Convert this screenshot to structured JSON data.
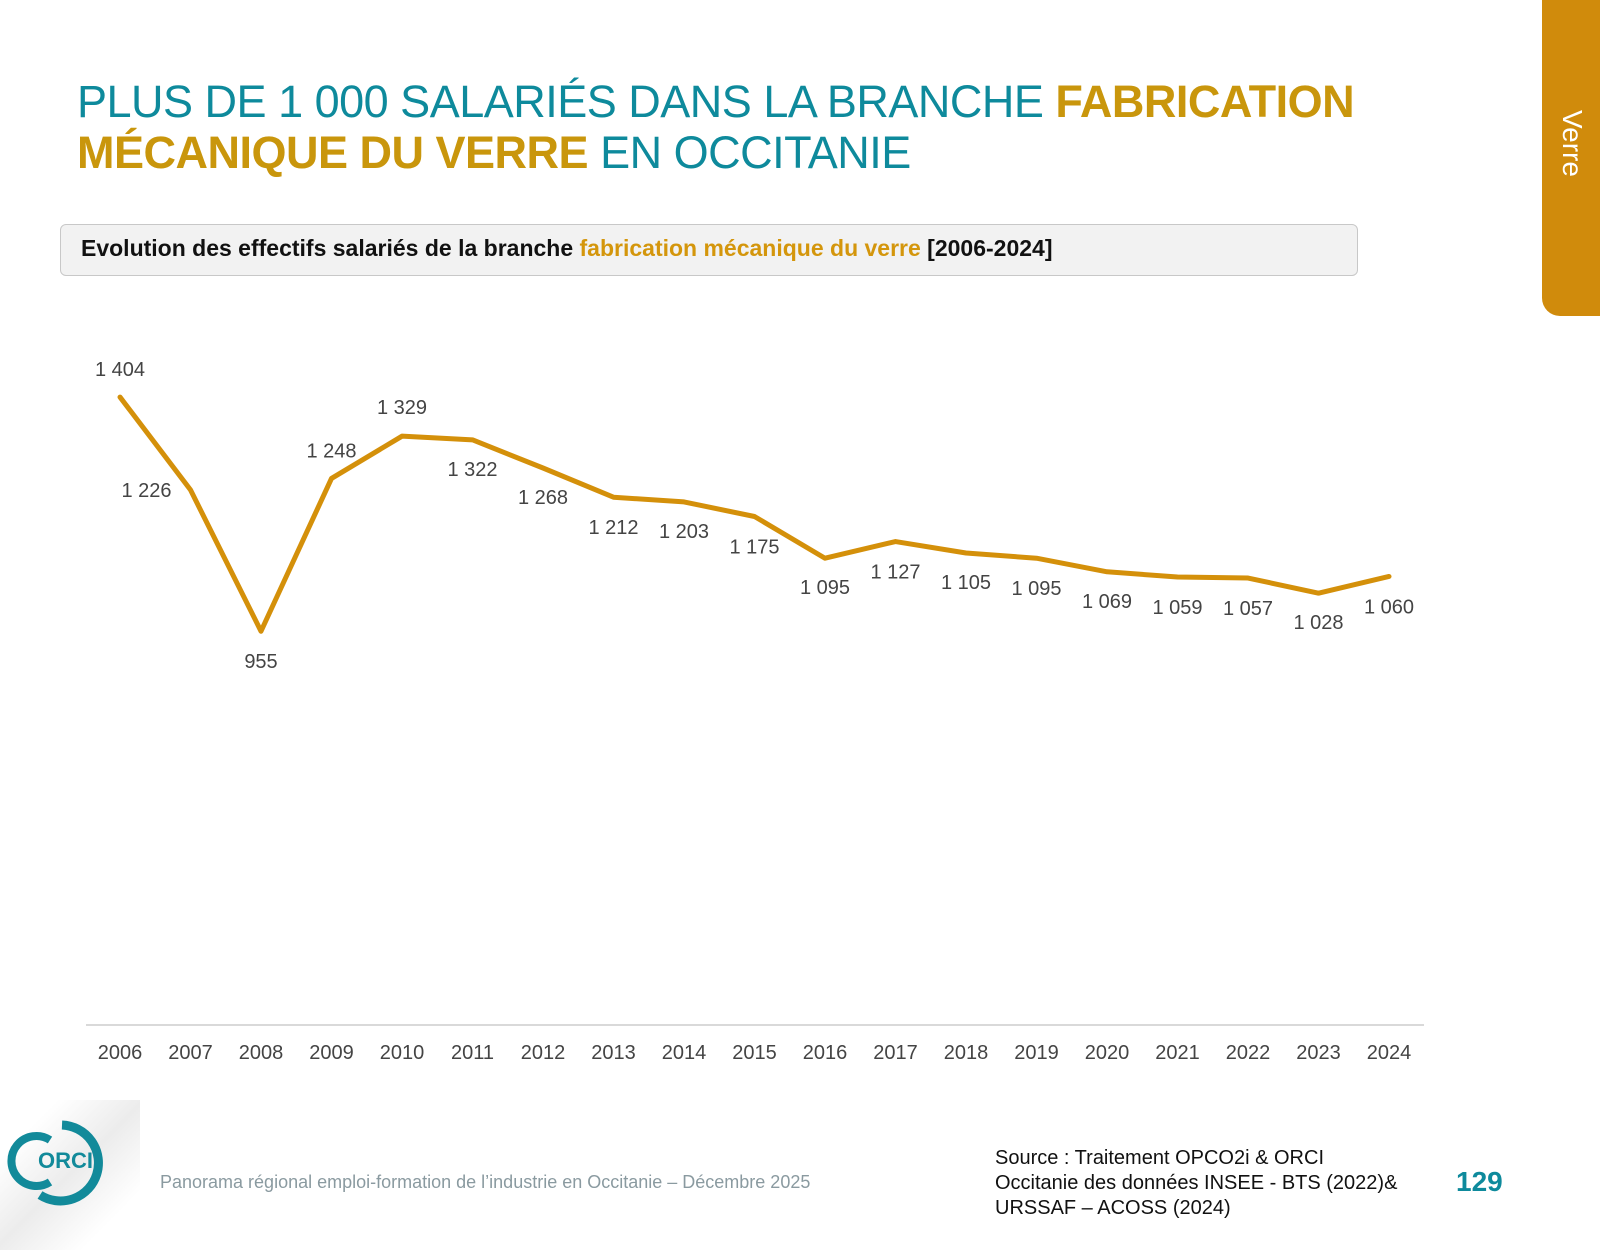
{
  "side_tab": {
    "label": "Verre"
  },
  "title": {
    "part1": "PLUS DE 1 000 SALARIÉS DANS LA BRANCHE ",
    "highlight": "FABRICATION MÉCANIQUE DU VERRE",
    "part2": " EN OCCITANIE"
  },
  "subtitle": {
    "part1": "Evolution des effectifs salariés de la branche ",
    "highlight": "fabrication mécanique du verre",
    "part2": " [2006-2024]"
  },
  "colors": {
    "teal": "#0e8a9c",
    "gold": "#d08b0c",
    "line": "#d4900a"
  },
  "chart_data": {
    "type": "line",
    "title": "",
    "xlabel": "",
    "ylabel": "",
    "categories": [
      "2006",
      "2007",
      "2008",
      "2009",
      "2010",
      "2011",
      "2012",
      "2013",
      "2014",
      "2015",
      "2016",
      "2017",
      "2018",
      "2019",
      "2020",
      "2021",
      "2022",
      "2023",
      "2024"
    ],
    "values": [
      1404,
      1226,
      955,
      1248,
      1329,
      1322,
      1268,
      1212,
      1203,
      1175,
      1095,
      1127,
      1105,
      1095,
      1069,
      1059,
      1057,
      1028,
      1060
    ],
    "data_labels": [
      "1 404",
      "1 226",
      "955",
      "1 248",
      "1 329",
      "1 322",
      "1 268",
      "1 212",
      "1 203",
      "1 175",
      "1 095",
      "1 127",
      "1 105",
      "1 095",
      "1 069",
      "1 059",
      "1 057",
      "1 028",
      "1 060"
    ],
    "ylim": [
      200,
      1500
    ],
    "grid": false,
    "legend": "none"
  },
  "footer": {
    "text": "Panorama régional emploi-formation de l’industrie en Occitanie – Décembre 2025",
    "logo_text": "ORCI"
  },
  "source": {
    "line1": "Source : Traitement OPCO2i & ORCI",
    "line2": "Occitanie des données  INSEE - BTS (2022)&",
    "line3": "URSSAF – ACOSS (2024)"
  },
  "page_number": "129"
}
